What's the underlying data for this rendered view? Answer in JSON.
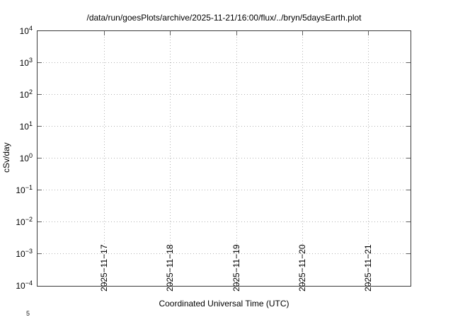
{
  "page": {
    "background": "#ffffff"
  },
  "chart_data": {
    "type": "line",
    "title": "/data/run/goesPlots/archive/2025-11-21/16:00/flux/../bryn/5daysEarth.plot",
    "xlabel": "Coordinated Universal Time (UTC)",
    "ylabel": "cSv/day",
    "x_axis": {
      "ticks": [
        {
          "label": "2025-11-17",
          "pos_pct": 17.84
        },
        {
          "label": "2025-11-18",
          "pos_pct": 35.53
        },
        {
          "label": "2025-11-19",
          "pos_pct": 53.23
        },
        {
          "label": "2025-11-20",
          "pos_pct": 70.92
        },
        {
          "label": "2025-11-21",
          "pos_pct": 88.61
        }
      ],
      "tick_label_rotation_deg": -90
    },
    "y_axis": {
      "scale": "log",
      "base": 10,
      "tick_exponents": [
        4,
        3,
        2,
        1,
        0,
        -1,
        -2,
        -3,
        -4
      ],
      "range": [
        "1e-4",
        "1e4"
      ]
    },
    "grid": true,
    "legend": "none",
    "series": []
  },
  "clipped_fragment": {
    "next_plot_exponent": "5"
  },
  "colors": {
    "frame": "#3c3c3c",
    "grid": "#b2b2b2",
    "tick": "#606060",
    "text": "#000000"
  }
}
